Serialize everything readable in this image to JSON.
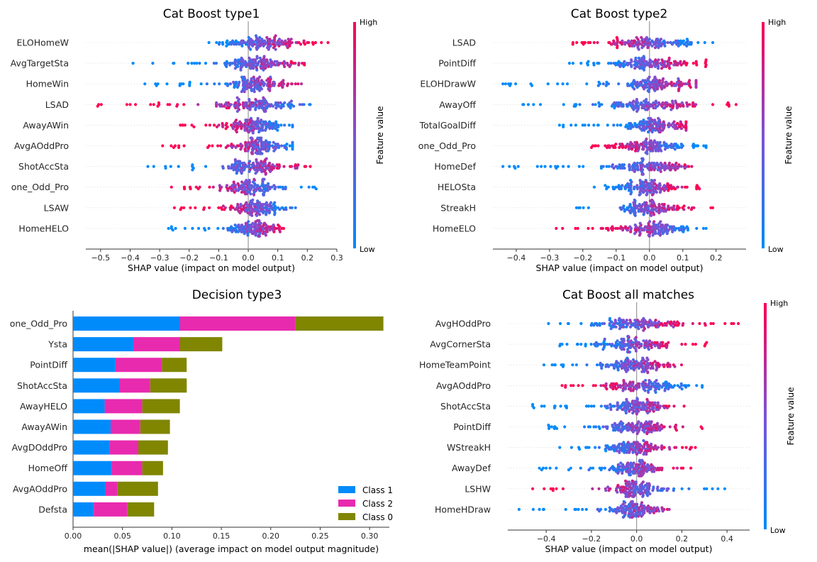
{
  "colors": {
    "low": "#008afb",
    "high": "#ff0052",
    "class1": "#008bfb",
    "class2": "#e82aaf",
    "class0": "#808600",
    "axis": "#333333",
    "zero_line": "#999999",
    "grid": "#cccccc"
  },
  "chart_data": [
    {
      "id": "p1",
      "type": "scatter",
      "subtype": "shap_beeswarm",
      "title": "Cat Boost type1",
      "xlabel": "SHAP value (impact on model output)",
      "xlim": [
        -0.55,
        0.3
      ],
      "xticks": [
        -0.5,
        -0.4,
        -0.3,
        -0.2,
        -0.1,
        0.0,
        0.1,
        0.2,
        0.3
      ],
      "xtick_labels": [
        "−0.5",
        "−0.4",
        "−0.3",
        "−0.2",
        "−0.1",
        "0.0",
        "0.1",
        "0.2",
        "0.3"
      ],
      "colorbar": {
        "high": "High",
        "low": "Low",
        "label": "Feature value"
      },
      "features": [
        {
          "name": "ELOHomeW",
          "min": -0.19,
          "max": 0.27,
          "core": 0.05,
          "spread": 0.06,
          "outliers": [
            0.27,
            0.2,
            0.22
          ],
          "trend": 1
        },
        {
          "name": "AvgTargetSta",
          "min": -0.39,
          "max": 0.19,
          "core": 0.03,
          "spread": 0.06,
          "outliers": [
            -0.39,
            0.19,
            0.14
          ],
          "trend": 1
        },
        {
          "name": "HomeWin",
          "min": -0.35,
          "max": 0.18,
          "core": 0.03,
          "spread": 0.05,
          "outliers": [
            -0.35,
            0.18,
            -0.22
          ],
          "trend": 1
        },
        {
          "name": "LSAD",
          "min": -0.51,
          "max": 0.21,
          "core": 0.02,
          "spread": 0.07,
          "outliers": [
            -0.51,
            -0.4,
            -0.32,
            0.21
          ],
          "trend": -1
        },
        {
          "name": "AwayAWin",
          "min": -0.23,
          "max": 0.15,
          "core": 0.02,
          "spread": 0.05,
          "outliers": [
            -0.23,
            0.15
          ],
          "trend": -1
        },
        {
          "name": "AvgAOddPro",
          "min": -0.29,
          "max": 0.15,
          "core": 0.03,
          "spread": 0.05,
          "outliers": [
            -0.29,
            0.15
          ],
          "trend": -1
        },
        {
          "name": "ShotAccSta",
          "min": -0.34,
          "max": 0.21,
          "core": 0.02,
          "spread": 0.05,
          "outliers": [
            -0.34,
            0.21,
            0.16
          ],
          "trend": 1
        },
        {
          "name": "one_Odd_Pro",
          "min": -0.26,
          "max": 0.23,
          "core": 0.0,
          "spread": 0.05,
          "outliers": [
            -0.26,
            0.23
          ],
          "trend": -1
        },
        {
          "name": "LSAW",
          "min": -0.25,
          "max": 0.16,
          "core": 0.02,
          "spread": 0.05,
          "outliers": [
            -0.25,
            0.16
          ],
          "trend": -1
        },
        {
          "name": "HomeHELO",
          "min": -0.27,
          "max": 0.12,
          "core": 0.02,
          "spread": 0.04,
          "outliers": [
            -0.27,
            0.12
          ],
          "trend": 1
        }
      ]
    },
    {
      "id": "p2",
      "type": "scatter",
      "subtype": "shap_beeswarm",
      "title": "Cat Boost type2",
      "xlabel": "SHAP value (impact on model output)",
      "xlim": [
        -0.47,
        0.29
      ],
      "xticks": [
        -0.4,
        -0.3,
        -0.2,
        -0.1,
        0.0,
        0.1,
        0.2
      ],
      "xtick_labels": [
        "−0.4",
        "−0.3",
        "−0.2",
        "−0.1",
        "0.0",
        "0.1",
        "0.2"
      ],
      "colorbar": {
        "high": "High",
        "low": "Low",
        "label": "Feature value"
      },
      "features": [
        {
          "name": "LSAD",
          "min": -0.23,
          "max": 0.19,
          "core": 0.0,
          "spread": 0.07,
          "outliers": [
            -0.23,
            0.19
          ],
          "trend": -1
        },
        {
          "name": "PointDiff",
          "min": -0.24,
          "max": 0.17,
          "core": 0.0,
          "spread": 0.07,
          "outliers": [
            -0.24,
            0.17
          ],
          "trend": 1
        },
        {
          "name": "ELOHDrawW",
          "min": -0.44,
          "max": 0.14,
          "core": 0.02,
          "spread": 0.06,
          "outliers": [
            -0.44,
            -0.26,
            0.14
          ],
          "trend": 1
        },
        {
          "name": "AwayOff",
          "min": -0.38,
          "max": 0.26,
          "core": 0.0,
          "spread": 0.07,
          "outliers": [
            -0.38,
            0.26,
            0.19
          ],
          "trend": 1
        },
        {
          "name": "TotalGoalDiff",
          "min": -0.27,
          "max": 0.11,
          "core": 0.02,
          "spread": 0.05,
          "outliers": [
            -0.27
          ],
          "trend": 1
        },
        {
          "name": "one_Odd_Pro",
          "min": -0.18,
          "max": 0.17,
          "core": 0.0,
          "spread": 0.06,
          "outliers": [
            0.17
          ],
          "trend": -1
        },
        {
          "name": "HomeDef",
          "min": -0.44,
          "max": 0.16,
          "core": 0.0,
          "spread": 0.06,
          "outliers": [
            -0.44,
            -0.28
          ],
          "trend": 1
        },
        {
          "name": "HELOSta",
          "min": -0.19,
          "max": 0.15,
          "core": 0.0,
          "spread": 0.05,
          "outliers": [
            0.15
          ],
          "trend": 1
        },
        {
          "name": "StreakH",
          "min": -0.22,
          "max": 0.19,
          "core": 0.0,
          "spread": 0.05,
          "outliers": [
            0.19
          ],
          "trend": 1
        },
        {
          "name": "HomeELO",
          "min": -0.28,
          "max": 0.17,
          "core": 0.01,
          "spread": 0.05,
          "outliers": [
            -0.28,
            0.17
          ],
          "trend": -1
        }
      ]
    },
    {
      "id": "p3",
      "type": "bar",
      "subtype": "stacked_horizontal",
      "title": "Decision type3",
      "xlabel": "mean(|SHAP value|) (average impact on model output magnitude)",
      "xlim": [
        0.0,
        0.32
      ],
      "xticks": [
        0.0,
        0.05,
        0.1,
        0.15,
        0.2,
        0.25,
        0.3
      ],
      "xtick_labels": [
        "0.00",
        "0.05",
        "0.10",
        "0.15",
        "0.20",
        "0.25",
        "0.30"
      ],
      "categories": [
        "one_Odd_Pro",
        "Ysta",
        "PointDiff",
        "ShotAccSta",
        "AwayHELO",
        "AwayAWin",
        "AvgDOddPro",
        "HomeOff",
        "AvgAOddPro",
        "Defsta"
      ],
      "series": [
        {
          "name": "Class 1",
          "color_key": "class1",
          "values": [
            0.108,
            0.061,
            0.043,
            0.047,
            0.032,
            0.038,
            0.037,
            0.039,
            0.033,
            0.021
          ]
        },
        {
          "name": "Class 2",
          "color_key": "class2",
          "values": [
            0.117,
            0.047,
            0.047,
            0.031,
            0.038,
            0.03,
            0.029,
            0.031,
            0.012,
            0.034
          ]
        },
        {
          "name": "Class 0",
          "color_key": "class0",
          "values": [
            0.089,
            0.043,
            0.025,
            0.037,
            0.038,
            0.03,
            0.03,
            0.021,
            0.041,
            0.027
          ]
        }
      ],
      "legend_position": "lower-right"
    },
    {
      "id": "p4",
      "type": "scatter",
      "subtype": "shap_beeswarm",
      "title": "Cat Boost all matches",
      "xlabel": "SHAP value (impact on model output)",
      "xlim": [
        -0.57,
        0.5
      ],
      "xticks": [
        -0.4,
        -0.2,
        0.0,
        0.2,
        0.4
      ],
      "xtick_labels": [
        "−0.4",
        "−0.2",
        "0.0",
        "0.2",
        "0.4"
      ],
      "colorbar": {
        "high": "High",
        "low": "Low",
        "label": "Feature value"
      },
      "features": [
        {
          "name": "AvgHOddPro",
          "min": -0.39,
          "max": 0.45,
          "core": 0.0,
          "spread": 0.1,
          "outliers": [
            -0.39,
            0.45,
            0.42
          ],
          "trend": 1
        },
        {
          "name": "AvgCornerSta",
          "min": -0.34,
          "max": 0.31,
          "core": 0.0,
          "spread": 0.08,
          "outliers": [
            -0.34,
            0.31
          ],
          "trend": 1
        },
        {
          "name": "HomeTeamPoint",
          "min": -0.41,
          "max": 0.25,
          "core": 0.0,
          "spread": 0.08,
          "outliers": [
            -0.41,
            -0.36
          ],
          "trend": 1
        },
        {
          "name": "AvgAOddPro",
          "min": -0.33,
          "max": 0.29,
          "core": 0.02,
          "spread": 0.09,
          "outliers": [
            -0.33,
            0.29
          ],
          "trend": -1
        },
        {
          "name": "ShotAccSta",
          "min": -0.46,
          "max": 0.21,
          "core": 0.0,
          "spread": 0.07,
          "outliers": [
            -0.46,
            -0.42,
            0.21
          ],
          "trend": 1
        },
        {
          "name": "PointDiff",
          "min": -0.39,
          "max": 0.29,
          "core": 0.0,
          "spread": 0.07,
          "outliers": [
            -0.39,
            0.29
          ],
          "trend": 1
        },
        {
          "name": "WStreakH",
          "min": -0.34,
          "max": 0.26,
          "core": 0.0,
          "spread": 0.07,
          "outliers": [
            -0.34,
            0.26
          ],
          "trend": 1
        },
        {
          "name": "AwayDef",
          "min": -0.43,
          "max": 0.24,
          "core": 0.0,
          "spread": 0.06,
          "outliers": [
            -0.43,
            -0.3,
            0.24
          ],
          "trend": 1
        },
        {
          "name": "LSHW",
          "min": -0.46,
          "max": 0.39,
          "core": 0.0,
          "spread": 0.06,
          "outliers": [
            -0.46,
            0.31,
            0.36,
            0.39
          ],
          "trend": -1
        },
        {
          "name": "HomeHDraw",
          "min": -0.52,
          "max": 0.2,
          "core": 0.0,
          "spread": 0.05,
          "outliers": [
            -0.52,
            -0.43
          ],
          "trend": 1
        }
      ]
    }
  ]
}
